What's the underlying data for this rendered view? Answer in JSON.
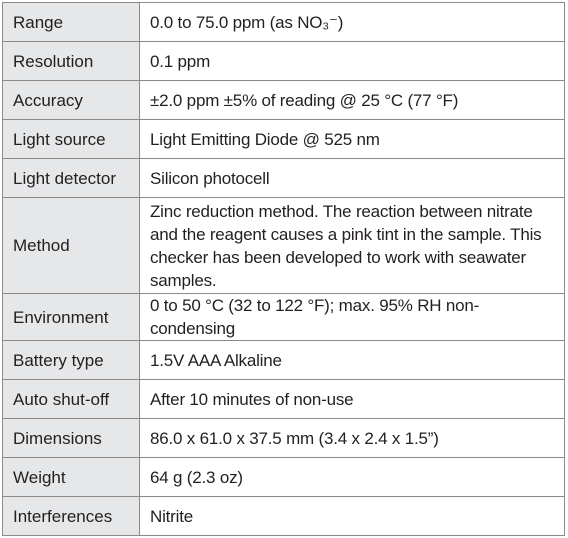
{
  "specifications": [
    {
      "label": "Range",
      "value": "0.0 to 75.0 ppm (as NO₃⁻)"
    },
    {
      "label": "Resolution",
      "value": "0.1 ppm"
    },
    {
      "label": "Accuracy",
      "value": "±2.0 ppm ±5% of reading @ 25 °C (77 °F)"
    },
    {
      "label": "Light source",
      "value": "Light Emitting Diode @ 525 nm"
    },
    {
      "label": "Light detector",
      "value": "Silicon photocell"
    },
    {
      "label": "Method",
      "value": "Zinc reduction method. The reaction between nitrate and the reagent causes a pink tint in the sample. This checker has been developed to work with seawater samples."
    },
    {
      "label": "Environment",
      "value": "0 to 50 °C (32 to 122 °F); max. 95% RH non-condensing"
    },
    {
      "label": "Battery type",
      "value": "1.5V AAA Alkaline"
    },
    {
      "label": "Auto shut-off",
      "value": "After 10 minutes of non-use"
    },
    {
      "label": "Dimensions",
      "value": "86.0 x 61.0 x 37.5 mm (3.4 x 2.4 x 1.5”)"
    },
    {
      "label": "Weight",
      "value": "64 g (2.3 oz)"
    },
    {
      "label": "Interferences",
      "value": "Nitrite"
    }
  ]
}
